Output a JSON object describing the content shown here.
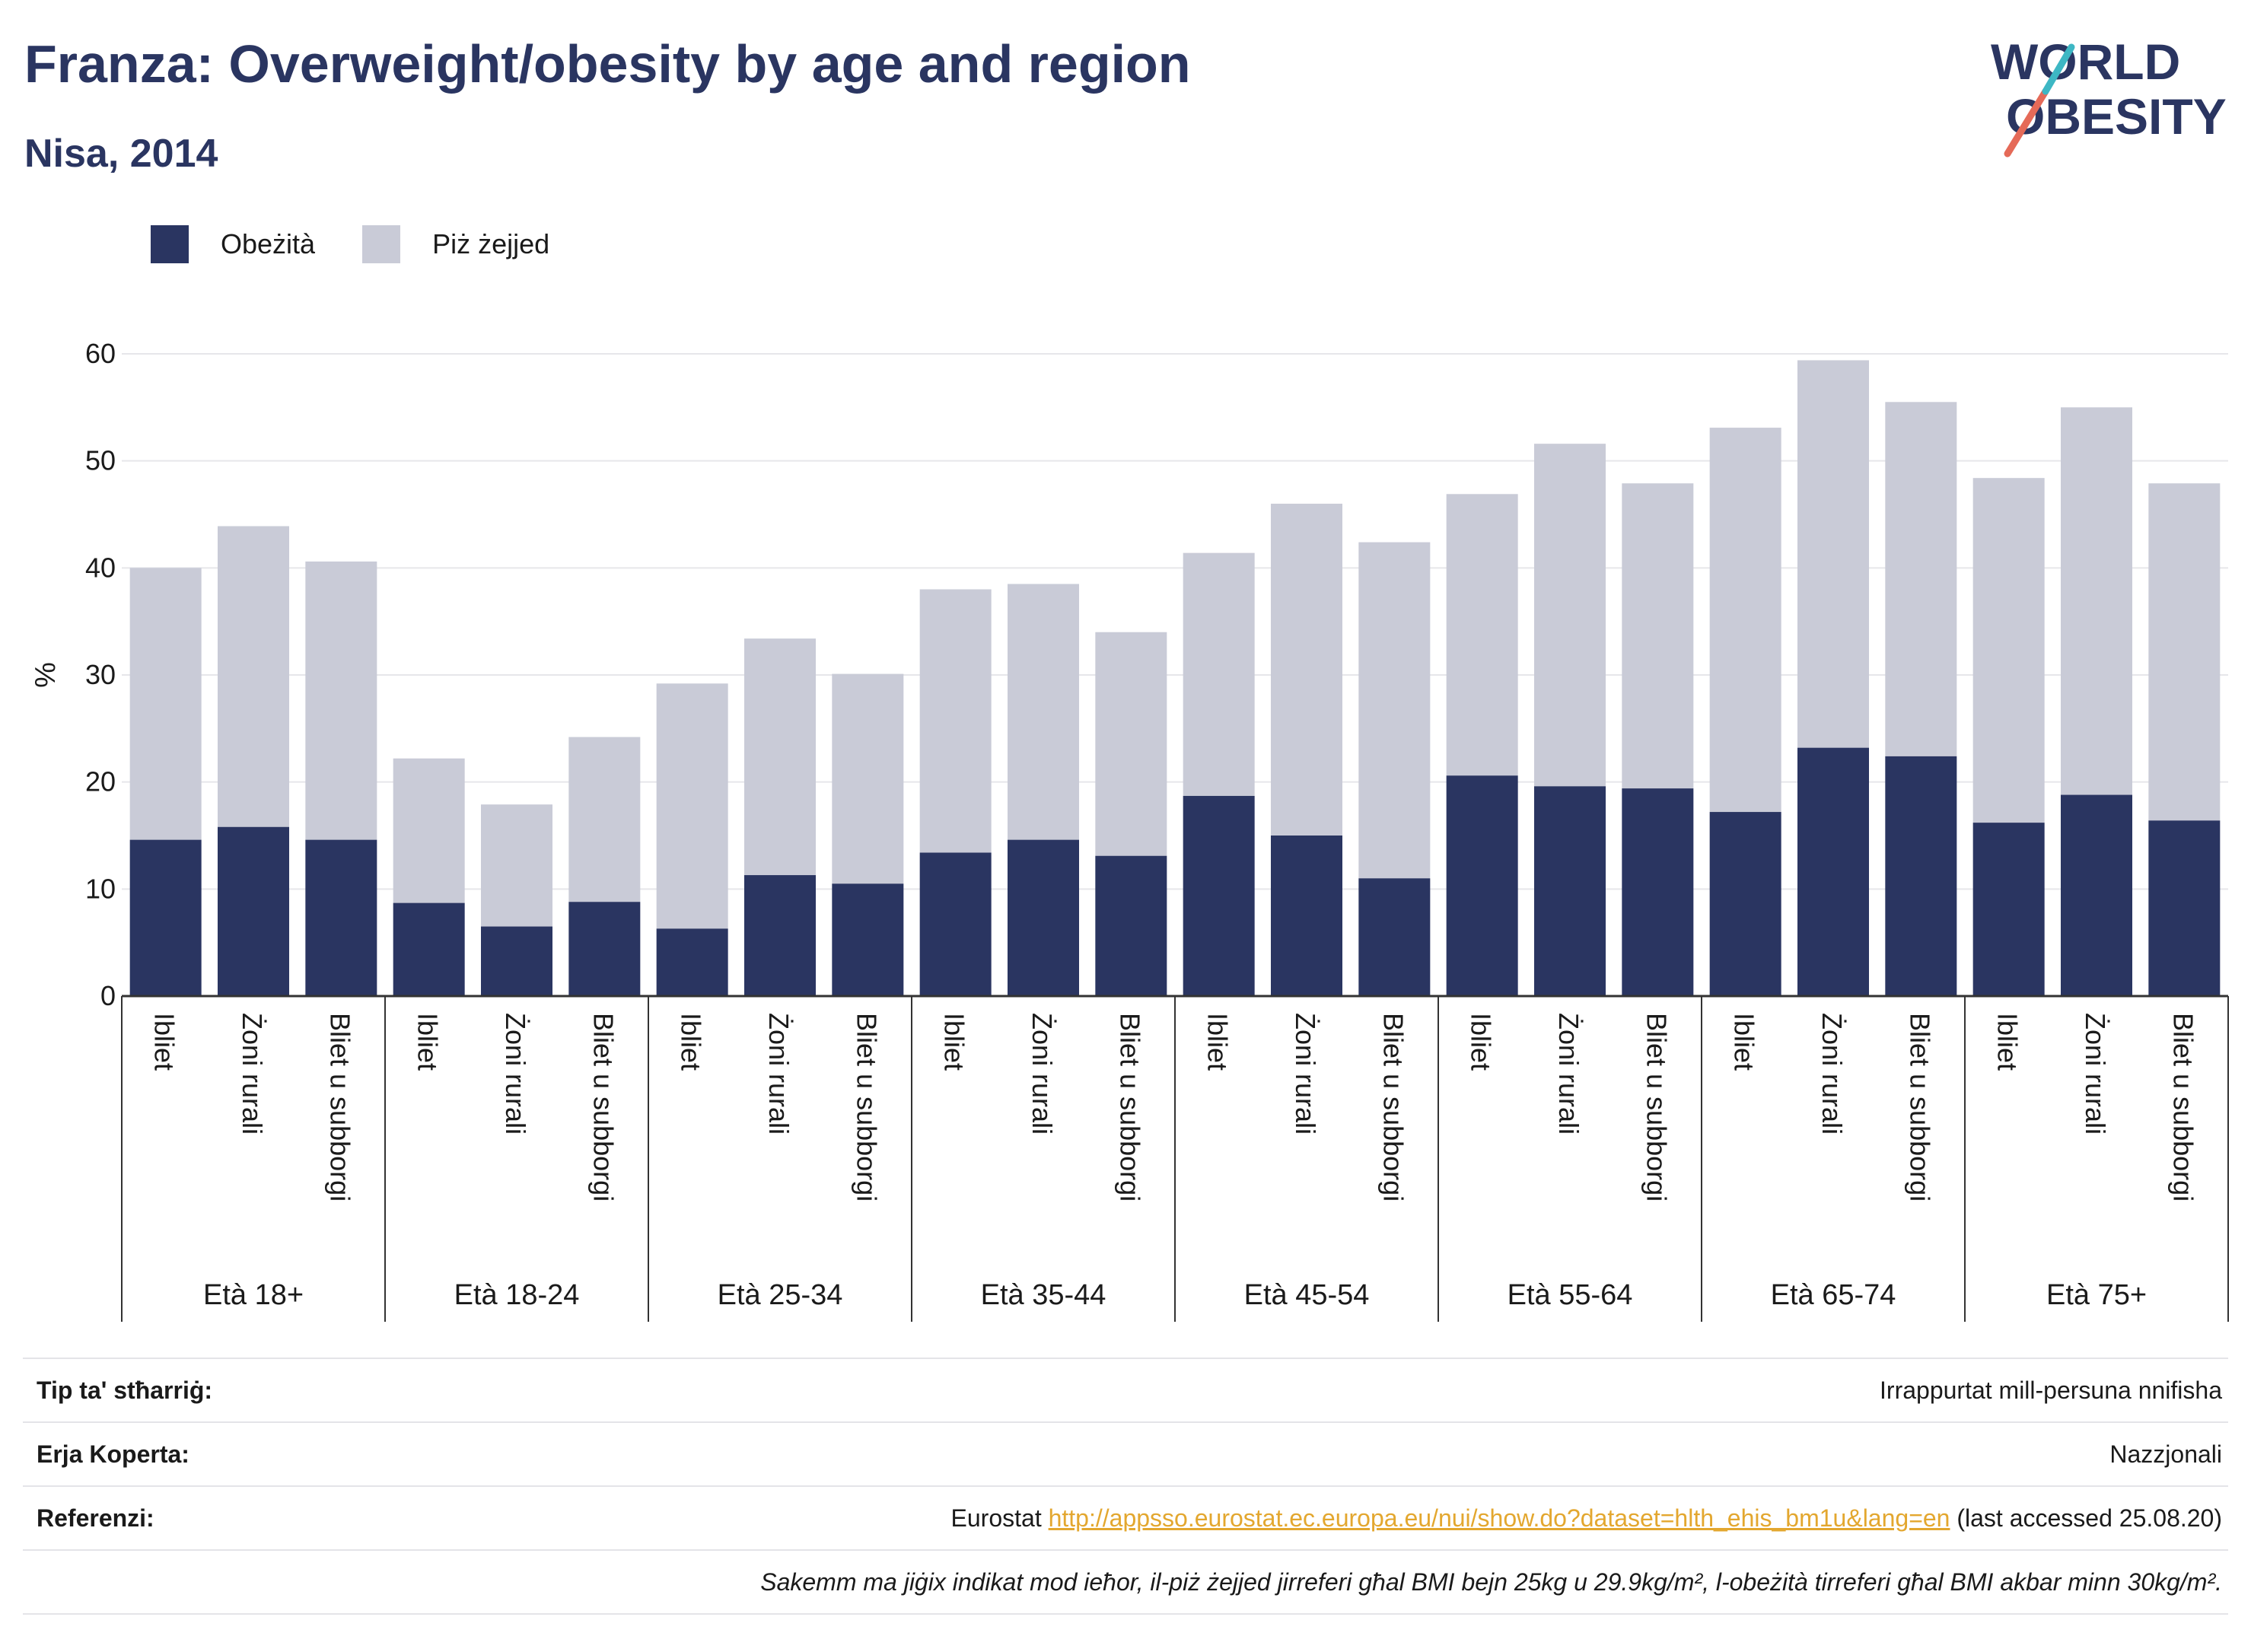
{
  "title": "Franza: Overweight/obesity by age and region",
  "subtitle": "Nisa, 2014",
  "logo": {
    "line1": "WORLD",
    "line2": "OBESITY"
  },
  "colors": {
    "obese": "#2a3561",
    "overweight": "#c9cbd7",
    "title": "#2a3561",
    "link": "#e3a72f"
  },
  "legend": {
    "obese": "Obeżità",
    "overweight": "Piż żejjed"
  },
  "chart_data": {
    "type": "bar",
    "stacked": true,
    "ylabel": "%",
    "ylim": [
      0,
      60
    ],
    "yticks": [
      0,
      10,
      20,
      30,
      40,
      50,
      60
    ],
    "grid": true,
    "legend_position": "top-left",
    "groups": [
      {
        "name": "Età 18+",
        "categories": [
          "Ibliet",
          "Żoni rurali",
          "Bliet u subborgi"
        ],
        "obese": [
          14.6,
          15.8,
          14.6
        ],
        "total": [
          40.0,
          43.9,
          40.6
        ]
      },
      {
        "name": "Età 18-24",
        "categories": [
          "Ibliet",
          "Żoni rurali",
          "Bliet u subborgi"
        ],
        "obese": [
          8.7,
          6.5,
          8.8
        ],
        "total": [
          22.2,
          17.9,
          24.2
        ]
      },
      {
        "name": "Età 25-34",
        "categories": [
          "Ibliet",
          "Żoni rurali",
          "Bliet u subborgi"
        ],
        "obese": [
          6.3,
          11.3,
          10.5
        ],
        "total": [
          29.2,
          33.4,
          30.1
        ]
      },
      {
        "name": "Età 35-44",
        "categories": [
          "Ibliet",
          "Żoni rurali",
          "Bliet u subborgi"
        ],
        "obese": [
          13.4,
          14.6,
          13.1
        ],
        "total": [
          38.0,
          38.5,
          34.0
        ]
      },
      {
        "name": "Età 45-54",
        "categories": [
          "Ibliet",
          "Żoni rurali",
          "Bliet u subborgi"
        ],
        "obese": [
          18.7,
          15.0,
          11.0
        ],
        "total": [
          41.4,
          46.0,
          42.4
        ]
      },
      {
        "name": "Età 55-64",
        "categories": [
          "Ibliet",
          "Żoni rurali",
          "Bliet u subborgi"
        ],
        "obese": [
          20.6,
          19.6,
          19.4
        ],
        "total": [
          46.9,
          51.6,
          47.9
        ]
      },
      {
        "name": "Età 65-74",
        "categories": [
          "Ibliet",
          "Żoni rurali",
          "Bliet u subborgi"
        ],
        "obese": [
          17.2,
          23.2,
          22.4
        ],
        "total": [
          53.1,
          59.4,
          55.5
        ]
      },
      {
        "name": "Età 75+",
        "categories": [
          "Ibliet",
          "Żoni rurali",
          "Bliet u subborgi"
        ],
        "obese": [
          16.2,
          18.8,
          16.4
        ],
        "total": [
          48.4,
          55.0,
          47.9
        ]
      }
    ]
  },
  "footer": {
    "type_label": "Tip ta' stħarriġ:",
    "type_value": "Irrappurtat mill-persuna nnifisha",
    "area_label": "Erja Koperta:",
    "area_value": "Nazzjonali",
    "ref_label": "Referenzi:",
    "ref_prefix": "Eurostat",
    "ref_link": "http://appsso.eurostat.ec.europa.eu/nui/show.do?dataset=hlth_ehis_bm1u&lang=en",
    "ref_suffix": "(last accessed 25.08.20)",
    "note": "Sakemm ma jiġix indikat mod ieħor, il-piż żejjed jirreferi għal BMI bejn 25kg u 29.9kg/m², l-obeżità tirreferi għal BMI akbar minn 30kg/m²."
  }
}
